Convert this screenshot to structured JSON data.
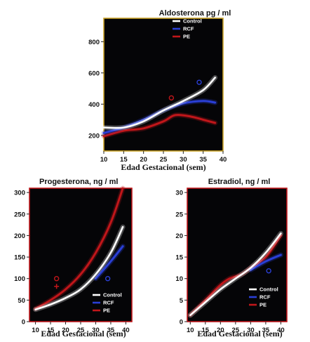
{
  "chart_data": [
    {
      "type": "line",
      "title": "Aldosterona pg / ml",
      "xlabel": "Edad Gestacional (sem)",
      "ylabel": "",
      "xlim": [
        10,
        40
      ],
      "ylim": [
        100,
        950
      ],
      "x_ticks": [
        "10",
        "15",
        "20",
        "25",
        "30",
        "35",
        "40"
      ],
      "y_ticks": [
        "200",
        "400",
        "600",
        "800"
      ],
      "legend_position": "top-right",
      "colors": {
        "Control": "#ffffff",
        "RCF": "#2a3fd6",
        "PE": "#c0161a",
        "frame": "#c9a227"
      },
      "series": [
        {
          "name": "Control",
          "points": [
            [
              10,
              250
            ],
            [
              15,
              250
            ],
            [
              20,
              290
            ],
            [
              25,
              360
            ],
            [
              30,
              420
            ],
            [
              35,
              490
            ],
            [
              38,
              570
            ]
          ]
        },
        {
          "name": "RCF",
          "points": [
            [
              10,
              215
            ],
            [
              15,
              250
            ],
            [
              20,
              300
            ],
            [
              25,
              360
            ],
            [
              30,
              405
            ],
            [
              35,
              420
            ],
            [
              38,
              410
            ]
          ]
        },
        {
          "name": "PE",
          "points": [
            [
              10,
              195
            ],
            [
              15,
              230
            ],
            [
              20,
              245
            ],
            [
              25,
              290
            ],
            [
              28,
              330
            ],
            [
              32,
              320
            ],
            [
              35,
              300
            ],
            [
              38,
              280
            ]
          ]
        }
      ],
      "annotations": [
        {
          "marker": "o",
          "color": "#c0161a",
          "x": 27,
          "y": 440
        },
        {
          "marker": "o",
          "color": "#2a3fd6",
          "x": 34,
          "y": 540
        }
      ]
    },
    {
      "type": "line",
      "title": "Progesterona, ng / ml",
      "xlabel": "Edad Gestacional (sem)",
      "ylabel": "",
      "xlim": [
        8,
        42
      ],
      "ylim": [
        0,
        310
      ],
      "x_ticks": [
        "10",
        "15",
        "20",
        "25",
        "30",
        "35",
        "40"
      ],
      "y_ticks": [
        "0",
        "50",
        "100",
        "150",
        "200",
        "250",
        "300"
      ],
      "legend_position": "bottom-right",
      "colors": {
        "Control": "#ffffff",
        "RCF": "#2a3fd6",
        "PE": "#c0161a",
        "frame": "#c0161a"
      },
      "series": [
        {
          "name": "Control",
          "points": [
            [
              10,
              28
            ],
            [
              15,
              40
            ],
            [
              20,
              55
            ],
            [
              25,
              75
            ],
            [
              30,
              110
            ],
            [
              35,
              160
            ],
            [
              39,
              220
            ]
          ]
        },
        {
          "name": "RCF",
          "points": [
            [
              30,
              100
            ],
            [
              35,
              140
            ],
            [
              39,
              175
            ]
          ]
        },
        {
          "name": "PE",
          "points": [
            [
              10,
              30
            ],
            [
              15,
              50
            ],
            [
              20,
              75
            ],
            [
              25,
              110
            ],
            [
              30,
              160
            ],
            [
              35,
              230
            ],
            [
              39,
              310
            ]
          ]
        }
      ],
      "annotations": [
        {
          "marker": "o",
          "color": "#c0161a",
          "x": 17,
          "y": 100
        },
        {
          "marker": "+",
          "color": "#c0161a",
          "x": 17,
          "y": 82
        },
        {
          "marker": "o",
          "color": "#2a3fd6",
          "x": 34,
          "y": 100
        }
      ]
    },
    {
      "type": "line",
      "title": "Estradiol, ng / ml",
      "xlabel": "Edad Gestacional (sem)",
      "ylabel": "",
      "xlim": [
        9,
        42
      ],
      "ylim": [
        0,
        31
      ],
      "x_ticks": [
        "10",
        "15",
        "20",
        "25",
        "30",
        "35",
        "40"
      ],
      "y_ticks": [
        "0",
        "5",
        "10",
        "15",
        "20",
        "25",
        "30"
      ],
      "legend_position": "bottom-right",
      "colors": {
        "Control": "#ffffff",
        "RCF": "#2a3fd6",
        "PE": "#c0161a",
        "frame": "#c0161a"
      },
      "series": [
        {
          "name": "Control",
          "points": [
            [
              10,
              1.5
            ],
            [
              15,
              4.5
            ],
            [
              20,
              7.5
            ],
            [
              25,
              10
            ],
            [
              30,
              12.5
            ],
            [
              35,
              16
            ],
            [
              40,
              20.5
            ]
          ]
        },
        {
          "name": "RCF",
          "points": [
            [
              30,
              12
            ],
            [
              35,
              14
            ],
            [
              40,
              15.5
            ]
          ]
        },
        {
          "name": "PE",
          "points": [
            [
              10,
              1.5
            ],
            [
              15,
              5
            ],
            [
              20,
              8.5
            ],
            [
              23,
              10
            ],
            [
              27,
              11
            ],
            [
              30,
              12.5
            ],
            [
              35,
              15
            ],
            [
              40,
              20
            ]
          ]
        }
      ],
      "annotations": [
        {
          "marker": "o",
          "color": "#2a3fd6",
          "x": 36,
          "y": 11.8
        }
      ]
    }
  ]
}
